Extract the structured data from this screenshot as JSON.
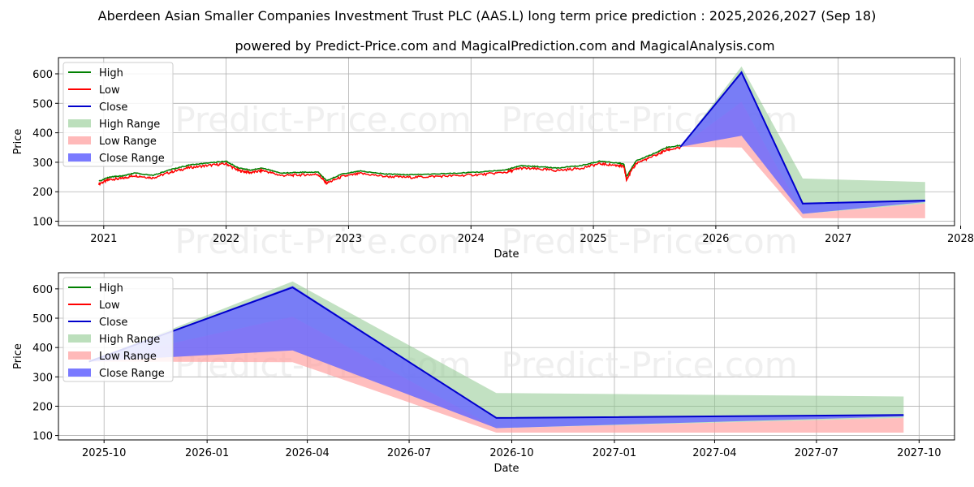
{
  "header": {
    "title": "Aberdeen Asian Smaller Companies Investment Trust PLC (AAS.L) long term price prediction : 2025,2026,2027 (Sep 18)",
    "subtitle": "powered by Predict-Price.com and MagicalPrediction.com and MagicalAnalysis.com"
  },
  "watermark": "Predict-Price.com",
  "colors": {
    "high": "#008000",
    "low": "#ff0000",
    "close": "#0000cc",
    "high_range": "#8fc98f",
    "low_range": "#ff9b9b",
    "close_range": "#6b6bff",
    "grid": "#b0b0b0"
  },
  "legend": [
    "High",
    "Low",
    "Close",
    "High Range",
    "Low Range",
    "Close Range"
  ],
  "chart_data": [
    {
      "type": "line",
      "title": "",
      "xlabel": "Date",
      "ylabel": "Price",
      "xlim": [
        2020.63,
        2027.95
      ],
      "ylim": [
        85,
        655
      ],
      "x_ticks": [
        2021,
        2022,
        2023,
        2024,
        2025,
        2026,
        2027,
        2028
      ],
      "x_tick_labels": [
        "2021",
        "2022",
        "2023",
        "2024",
        "2025",
        "2026",
        "2027",
        "2028"
      ],
      "y_ticks": [
        100,
        200,
        300,
        400,
        500,
        600
      ],
      "y_tick_labels": [
        "100",
        "200",
        "300",
        "400",
        "500",
        "600"
      ],
      "grid": true,
      "legend_position": "top-left",
      "history": {
        "x": [
          2020.96,
          2021.05,
          2021.15,
          2021.25,
          2021.4,
          2021.55,
          2021.7,
          2021.85,
          2022.0,
          2022.1,
          2022.2,
          2022.3,
          2022.45,
          2022.6,
          2022.75,
          2022.82,
          2022.95,
          2023.1,
          2023.3,
          2023.5,
          2023.7,
          2023.9,
          2024.1,
          2024.3,
          2024.4,
          2024.55,
          2024.7,
          2024.9,
          2025.05,
          2025.2,
          2025.25,
          2025.27,
          2025.35,
          2025.5,
          2025.6,
          2025.71
        ],
        "close": [
          230,
          245,
          248,
          258,
          250,
          270,
          285,
          292,
          298,
          275,
          268,
          275,
          258,
          260,
          262,
          232,
          255,
          265,
          255,
          252,
          255,
          258,
          262,
          270,
          283,
          280,
          275,
          283,
          298,
          292,
          288,
          245,
          300,
          325,
          345,
          352
        ]
      },
      "forecast": {
        "x": [
          2025.71,
          2026.21,
          2026.71,
          2027.71
        ],
        "high_range_upper": [
          352,
          625,
          245,
          233
        ],
        "high_range_lower": [
          352,
          505,
          125,
          160
        ],
        "low_range_upper": [
          352,
          505,
          125,
          160
        ],
        "low_range_lower": [
          352,
          350,
          110,
          110
        ],
        "close_range_upper": [
          352,
          610,
          162,
          170
        ],
        "close_range_lower": [
          352,
          390,
          125,
          165
        ],
        "close": [
          352,
          605,
          160,
          170
        ]
      }
    },
    {
      "type": "line",
      "title": "",
      "xlabel": "Date",
      "ylabel": "Price",
      "xlim": [
        2025.635,
        2027.835
      ],
      "ylim": [
        85,
        655
      ],
      "x_ticks": [
        2025.747,
        2026.0,
        2026.246,
        2026.496,
        2026.748,
        2027.0,
        2027.246,
        2027.496,
        2027.748
      ],
      "x_tick_labels": [
        "2025-10",
        "2026-01",
        "2026-04",
        "2026-07",
        "2026-10",
        "2027-01",
        "2027-04",
        "2027-07",
        "2027-10"
      ],
      "y_ticks": [
        100,
        200,
        300,
        400,
        500,
        600
      ],
      "y_tick_labels": [
        "100",
        "200",
        "300",
        "400",
        "500",
        "600"
      ],
      "grid": true,
      "legend_position": "top-left",
      "forecast": {
        "x": [
          2025.71,
          2026.21,
          2026.71,
          2027.71
        ],
        "high_range_upper": [
          352,
          625,
          245,
          233
        ],
        "high_range_lower": [
          352,
          505,
          125,
          160
        ],
        "low_range_upper": [
          352,
          505,
          125,
          160
        ],
        "low_range_lower": [
          352,
          350,
          110,
          110
        ],
        "close_range_upper": [
          352,
          610,
          162,
          170
        ],
        "close_range_lower": [
          352,
          390,
          125,
          165
        ],
        "close": [
          352,
          605,
          160,
          170
        ]
      }
    }
  ]
}
